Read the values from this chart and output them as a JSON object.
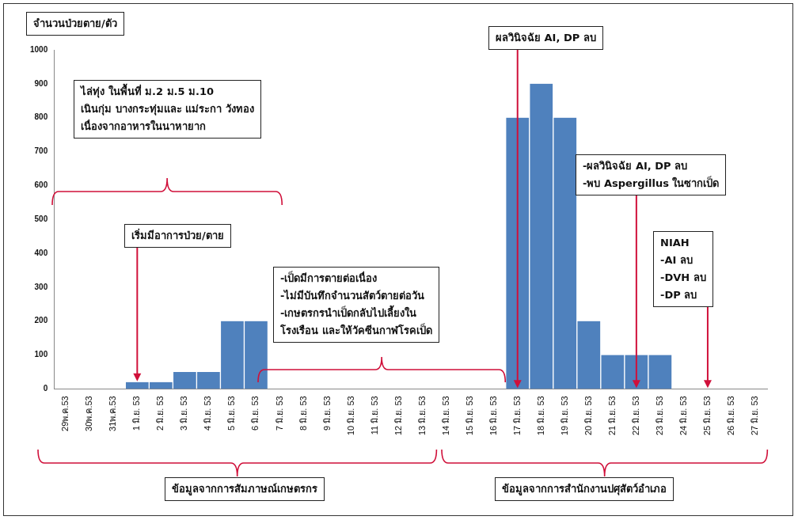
{
  "chart_data": {
    "type": "bar",
    "ylabel": "จำนวนป่วยตาย/ตัว",
    "categories": [
      "29พ.ค.53",
      "30พ.ค.53",
      "31พ.ค.53",
      "1 มิ.ย. 53",
      "2 มิ.ย. 53",
      "3 มิ.ย. 53",
      "4 มิ.ย. 53",
      "5 มิ.ย. 53",
      "6 มิ.ย. 53",
      "7 มิ.ย. 53",
      "8 มิ.ย. 53",
      "9 มิ.ย. 53",
      "10 มิ.ย. 53",
      "11 มิ.ย. 53",
      "12 มิ.ย. 53",
      "13 มิ.ย. 53",
      "14 มิ.ย. 53",
      "15 มิ.ย. 53",
      "16 มิ.ย. 53",
      "17 มิ.ย. 53",
      "18 มิ.ย. 53",
      "19 มิ.ย. 53",
      "20 มิ.ย. 53",
      "21 มิ.ย. 53",
      "22 มิ.ย. 53",
      "23 มิ.ย. 53",
      "24 มิ.ย. 53",
      "25 มิ.ย. 53",
      "26 มิ.ย. 53",
      "27 มิ.ย. 53"
    ],
    "values": [
      0,
      0,
      0,
      20,
      20,
      50,
      50,
      200,
      200,
      0,
      0,
      0,
      0,
      0,
      0,
      0,
      0,
      0,
      0,
      800,
      900,
      800,
      200,
      100,
      100,
      100,
      0,
      0,
      0,
      0
    ],
    "color": "#4f81bd",
    "ylim": [
      0,
      1000
    ],
    "yticks": [
      0,
      100,
      200,
      300,
      400,
      500,
      600,
      700,
      800,
      900,
      1000
    ],
    "grid": false,
    "annotations": [
      "ไล่ทุ่ง ในพื้นที่ ม.2 ม.5 ม.10\nเนินกุ่ม บางกระทุ่มและ แม่ระกา วังทอง\nเนื่องจากอาหารในนาหายาก",
      {
        "text": "เริ่มมีอาการป่วย/ตาย",
        "x": "1 มิ.ย. 53",
        "y": 20
      },
      "-เป็ดมีการตายต่อเนื่อง\n-ไม่มีบันทึกจำนวนสัตว์ตายต่อวัน\n-เกษตรกรนำเป็ดกลับไปเลี้ยงใน\nโรงเรือน และให้วัคซีนกาฬโรคเป็ด",
      {
        "text": "ผลวินิจฉัย AI, DP ลบ",
        "x": "17 มิ.ย. 53",
        "y": 0
      },
      {
        "text": "-ผลวินิจฉัย AI, DP ลบ\n-พบ Aspergillus ในซากเป็ด",
        "x": "22 มิ.ย. 53",
        "y": 0
      },
      {
        "text": "NIAH\n-AI ลบ\n-DVH ลบ\n-DP ลบ",
        "x": "25 มิ.ย. 53",
        "y": 0
      },
      "ข้อมูลจากการสัมภาษณ์เกษตรกร",
      "ข้อมูลจากการสำนักงานปศุสัตว์อำเภอ"
    ]
  }
}
